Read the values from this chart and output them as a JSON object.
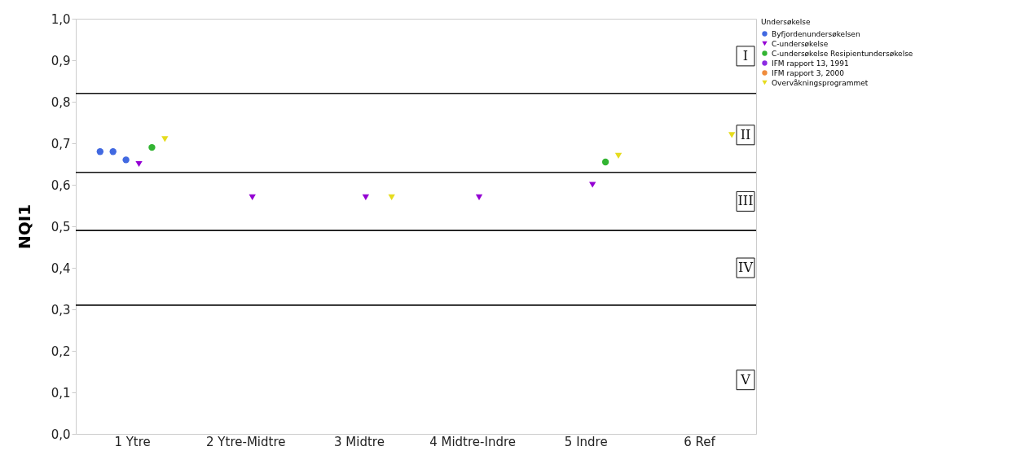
{
  "chart_data": {
    "type": "scatter",
    "ylabel": "NQI1",
    "legend_title": "Undersøkelse",
    "legend": "top right",
    "grid": false,
    "categories": [
      "1 Ytre",
      "2 Ytre-Midtre",
      "3 Midtre",
      "4 Midtre-Indre",
      "5 Indre",
      "6 Ref"
    ],
    "ylim": [
      0,
      1
    ],
    "yticks": [
      {
        "value": 0,
        "label": "0,0"
      },
      {
        "value": 0.1,
        "label": "0,1"
      },
      {
        "value": 0.2,
        "label": "0,2"
      },
      {
        "value": 0.3,
        "label": "0,3"
      },
      {
        "value": 0.4,
        "label": "0,4"
      },
      {
        "value": 0.5,
        "label": "0,5"
      },
      {
        "value": 0.6,
        "label": "0,6"
      },
      {
        "value": 0.7,
        "label": "0,7"
      },
      {
        "value": 0.8,
        "label": "0,8"
      },
      {
        "value": 0.9,
        "label": "0,9"
      },
      {
        "value": 1,
        "label": "1,0"
      }
    ],
    "series": [
      {
        "name": "Byfjordenundersøkelsen",
        "color": "#4169e1",
        "marker": "circle",
        "x": [
          "1 Ytre",
          "1 Ytre",
          "1 Ytre"
        ],
        "values": [
          0.68,
          0.68,
          0.66
        ]
      },
      {
        "name": "C-undersøkelse",
        "color": "#9400d3",
        "marker": "triangle",
        "x": [
          "1 Ytre",
          "2 Ytre-Midtre",
          "3 Midtre",
          "4 Midtre-Indre",
          "5 Indre"
        ],
        "values": [
          0.65,
          0.57,
          0.57,
          0.57,
          0.6
        ]
      },
      {
        "name": "C-undersøkelse Resipientundersøkelse",
        "color": "#32b432",
        "marker": "circle",
        "x": [
          "1 Ytre",
          "5 Indre"
        ],
        "values": [
          0.69,
          0.655
        ]
      },
      {
        "name": "IFM rapport 13, 1991",
        "color": "#8b2be2",
        "marker": "circle",
        "values": [
          null,
          null,
          null,
          null,
          null,
          null
        ]
      },
      {
        "name": "IFM rapport 3, 2000",
        "color": "#f08c3c",
        "marker": "circle",
        "values": [
          null,
          null,
          null,
          null,
          null,
          null
        ]
      },
      {
        "name": "Overvåkningsprogrammet",
        "color": "#e6dc1e",
        "marker": "triangle",
        "x": [
          "1 Ytre",
          "3 Midtre",
          "5 Indre",
          "6 Ref"
        ],
        "values": [
          0.71,
          0.57,
          0.67,
          0.72
        ]
      }
    ],
    "ref_lines": [
      {
        "axis": "y",
        "value": 0.82
      },
      {
        "axis": "y",
        "value": 0.63
      },
      {
        "axis": "y",
        "value": 0.49
      },
      {
        "axis": "y",
        "value": 0.31
      }
    ],
    "annotations": [
      {
        "text": "I",
        "y": 0.91
      },
      {
        "text": "II",
        "y": 0.72
      },
      {
        "text": "III",
        "y": 0.56
      },
      {
        "text": "IV",
        "y": 0.4
      },
      {
        "text": "V",
        "y": 0.13
      }
    ]
  }
}
